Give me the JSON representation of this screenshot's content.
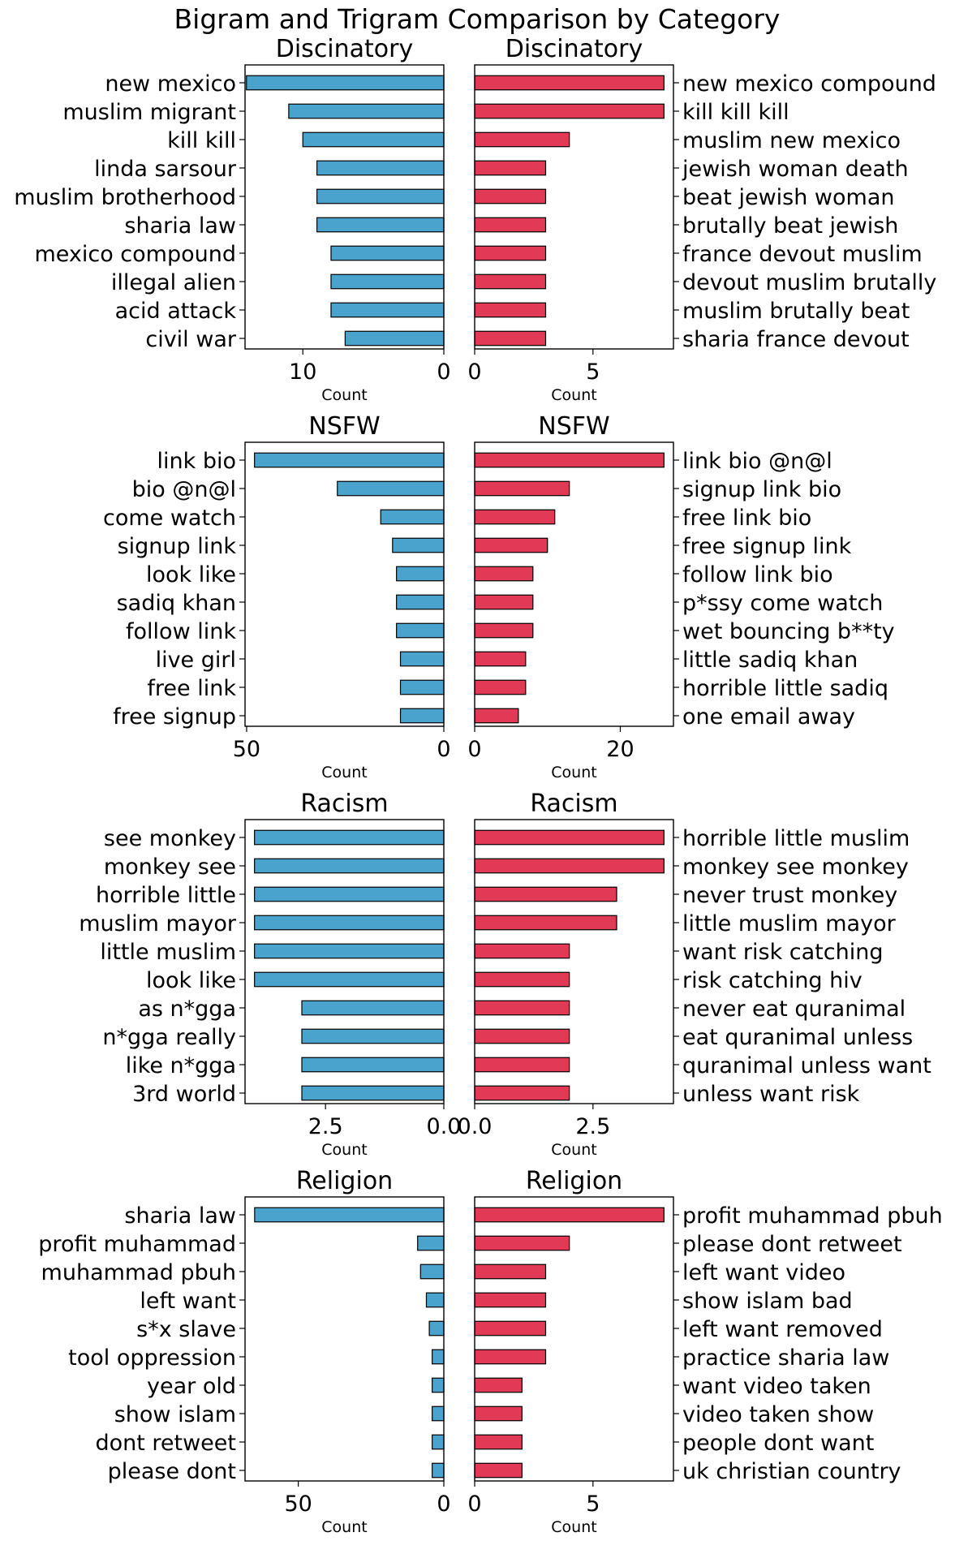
{
  "figure_title": "Bigram and Trigram Comparison by Category",
  "colors": {
    "bigram_bar": "#4aa3cc",
    "trigram_bar": "#e23956",
    "edge": "#000000"
  },
  "chart_data": [
    {
      "type": "bar",
      "orientation": "horizontal-inverted",
      "title": "Discinatory",
      "xlabel": "Count",
      "xlim": [
        14.1,
        0
      ],
      "xticks": [
        10,
        0
      ],
      "categories": [
        "new mexico",
        "muslim migrant",
        "kill kill",
        "linda sarsour",
        "muslim brotherhood",
        "sharia law",
        "mexico compound",
        "illegal alien",
        "acid attack",
        "civil war"
      ],
      "values": [
        14,
        11,
        10,
        9,
        9,
        9,
        8,
        8,
        8,
        7
      ]
    },
    {
      "type": "bar",
      "orientation": "horizontal",
      "title": "Discinatory",
      "xlabel": "Count",
      "xlim": [
        0,
        8.4
      ],
      "xticks": [
        0,
        5
      ],
      "categories": [
        "new mexico compound",
        "kill kill kill",
        "muslim new mexico",
        "jewish woman death",
        "beat jewish woman",
        "brutally beat jewish",
        "france devout muslim",
        "devout muslim brutally",
        "muslim brutally beat",
        "sharia france devout"
      ],
      "values": [
        8,
        8,
        4,
        3,
        3,
        3,
        3,
        3,
        3,
        3
      ]
    },
    {
      "type": "bar",
      "orientation": "horizontal-inverted",
      "title": "NSFW",
      "xlabel": "Count",
      "xlim": [
        50.4,
        0
      ],
      "xticks": [
        50,
        0
      ],
      "categories": [
        "link bio",
        "bio @n@l",
        "come watch",
        "signup link",
        "look like",
        "sadiq khan",
        "follow link",
        "live girl",
        "free link",
        "free signup"
      ],
      "values": [
        48,
        27,
        16,
        13,
        12,
        12,
        12,
        11,
        11,
        11
      ]
    },
    {
      "type": "bar",
      "orientation": "horizontal",
      "title": "NSFW",
      "xlabel": "Count",
      "xlim": [
        0,
        27.3
      ],
      "xticks": [
        0,
        20
      ],
      "categories": [
        "link bio @n@l",
        "signup link bio",
        "free link bio",
        "free signup link",
        "follow link bio",
        "p*ssy come watch",
        "wet bouncing b**ty",
        "little sadiq khan",
        "horrible little sadiq",
        "one email away"
      ],
      "values": [
        26,
        13,
        11,
        10,
        8,
        8,
        8,
        7,
        7,
        6
      ]
    },
    {
      "type": "bar",
      "orientation": "horizontal-inverted",
      "title": "Racism",
      "xlabel": "Count",
      "xlim": [
        4.2,
        0
      ],
      "xticks": [
        2.5,
        0.0
      ],
      "categories": [
        "see monkey",
        "monkey see",
        "horrible little",
        "muslim mayor",
        "little muslim",
        "look like",
        "as n*gga",
        "n*gga really",
        "like n*gga",
        "3rd world"
      ],
      "values": [
        4,
        4,
        4,
        4,
        4,
        4,
        3,
        3,
        3,
        3
      ]
    },
    {
      "type": "bar",
      "orientation": "horizontal",
      "title": "Racism",
      "xlabel": "Count",
      "xlim": [
        0,
        4.2
      ],
      "xticks": [
        0.0,
        2.5
      ],
      "categories": [
        "horrible little muslim",
        "monkey see monkey",
        "never trust monkey",
        "little muslim mayor",
        "want risk catching",
        "risk catching hiv",
        "never eat quranimal",
        "eat quranimal unless",
        "quranimal unless want",
        "unless want risk"
      ],
      "values": [
        4,
        4,
        3,
        3,
        2,
        2,
        2,
        2,
        2,
        2
      ]
    },
    {
      "type": "bar",
      "orientation": "horizontal-inverted",
      "title": "Religion",
      "xlabel": "Count",
      "xlim": [
        68.3,
        0
      ],
      "xticks": [
        50,
        0
      ],
      "categories": [
        "sharia law",
        "profit muhammad",
        "muhammad pbuh",
        "left want",
        "s*x slave",
        "tool oppression",
        "year old",
        "show islam",
        "dont retweet",
        "please dont"
      ],
      "values": [
        65,
        9,
        8,
        6,
        5,
        4,
        4,
        4,
        4,
        4
      ]
    },
    {
      "type": "bar",
      "orientation": "horizontal",
      "title": "Religion",
      "xlabel": "Count",
      "xlim": [
        0,
        8.4
      ],
      "xticks": [
        0,
        5
      ],
      "categories": [
        "profit muhammad pbuh",
        "please dont retweet",
        "left want video",
        "show islam bad",
        "left want removed",
        "practice sharia law",
        "want video taken",
        "video taken show",
        "people dont want",
        "uk christian country"
      ],
      "values": [
        8,
        4,
        3,
        3,
        3,
        3,
        2,
        2,
        2,
        2
      ]
    }
  ]
}
